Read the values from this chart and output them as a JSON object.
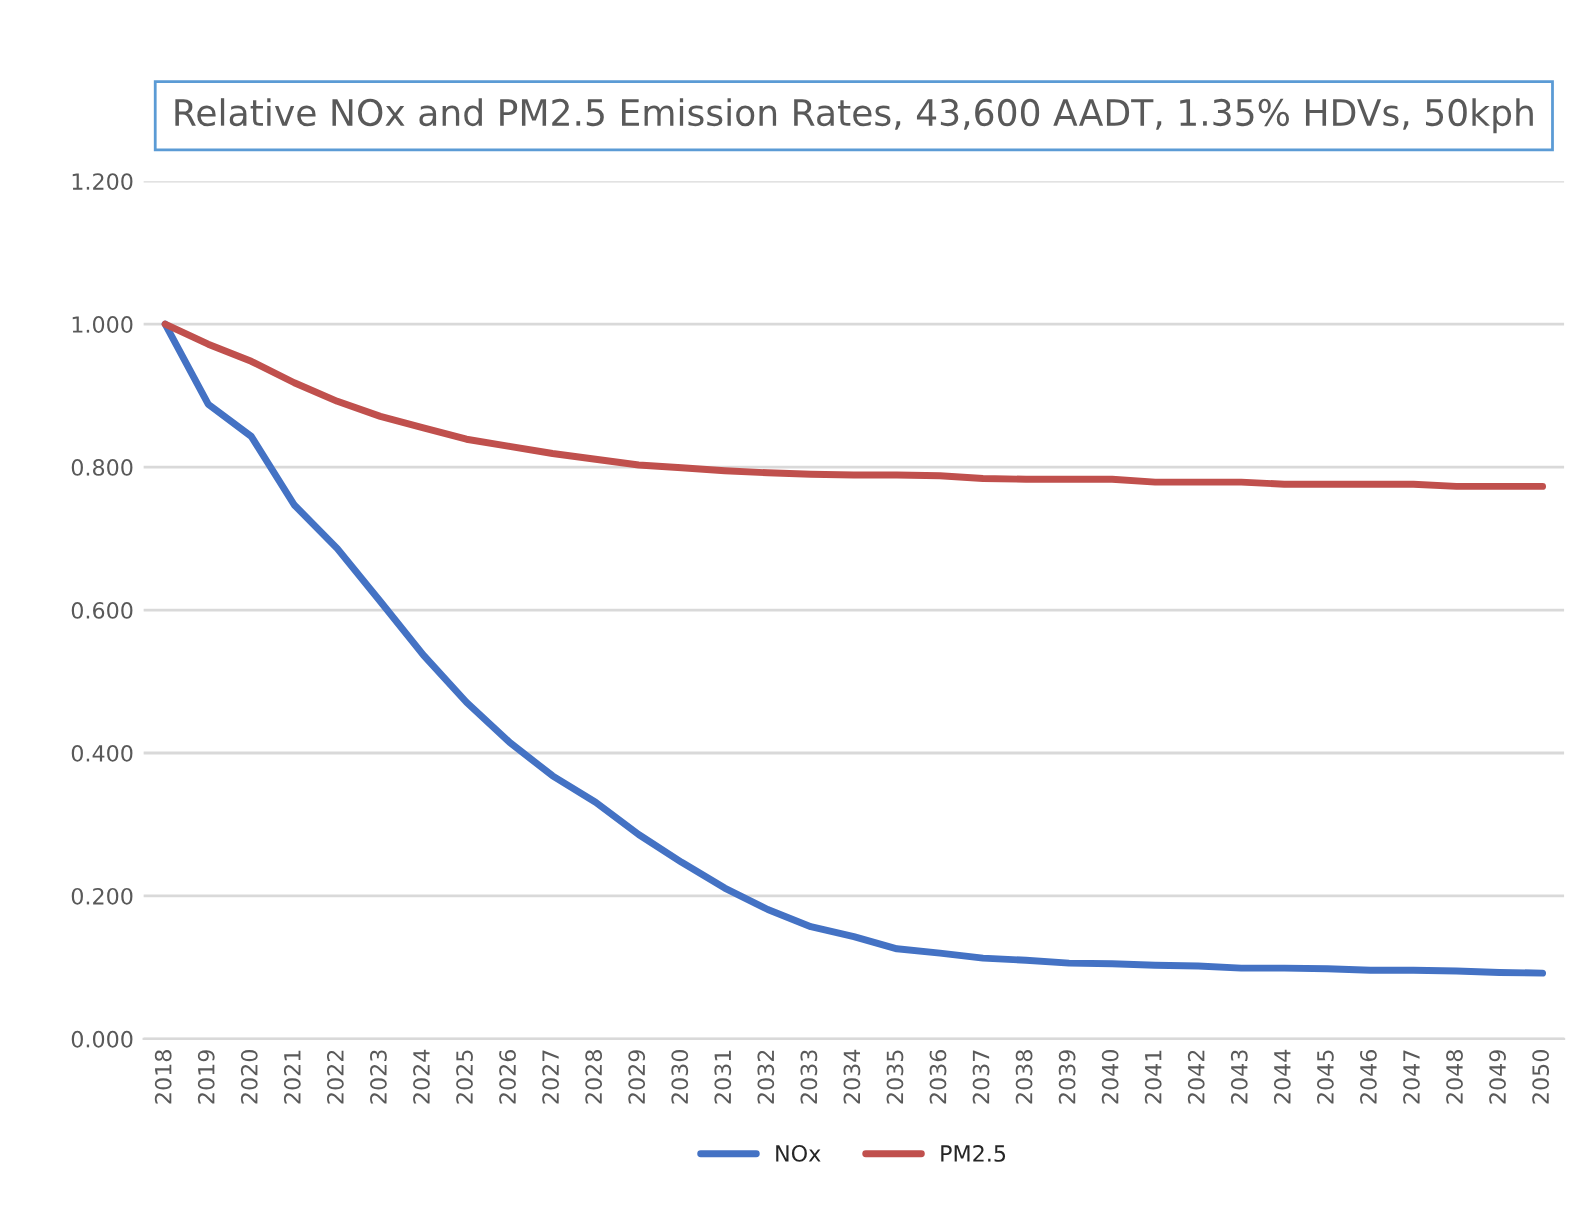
{
  "chart_data": {
    "type": "line",
    "title": "Relative NOx and PM2.5 Emission Rates, 43,600 AADT, 1.35% HDVs, 50kph",
    "categories": [
      "2018",
      "2019",
      "2020",
      "2021",
      "2022",
      "2023",
      "2024",
      "2025",
      "2026",
      "2027",
      "2028",
      "2029",
      "2030",
      "2031",
      "2032",
      "2033",
      "2034",
      "2035",
      "2036",
      "2037",
      "2038",
      "2039",
      "2040",
      "2041",
      "2042",
      "2043",
      "2044",
      "2045",
      "2046",
      "2047",
      "2048",
      "2049",
      "2050"
    ],
    "series": [
      {
        "name": "NOx",
        "color": "#4472c4",
        "values": [
          1.0,
          0.888,
          0.843,
          0.747,
          0.686,
          0.612,
          0.537,
          0.471,
          0.415,
          0.368,
          0.331,
          0.286,
          0.247,
          0.211,
          0.181,
          0.157,
          0.143,
          0.126,
          0.12,
          0.113,
          0.11,
          0.106,
          0.105,
          0.103,
          0.102,
          0.099,
          0.099,
          0.098,
          0.096,
          0.096,
          0.095,
          0.093,
          0.092
        ]
      },
      {
        "name": "PM2.5",
        "color": "#c0504d",
        "values": [
          1.0,
          0.972,
          0.948,
          0.918,
          0.892,
          0.871,
          0.855,
          0.839,
          0.829,
          0.819,
          0.811,
          0.803,
          0.799,
          0.795,
          0.792,
          0.79,
          0.789,
          0.789,
          0.788,
          0.784,
          0.783,
          0.783,
          0.783,
          0.779,
          0.779,
          0.779,
          0.776,
          0.776,
          0.776,
          0.776,
          0.773,
          0.773,
          0.773
        ]
      }
    ],
    "ylim": [
      0,
      1.2
    ],
    "yticks": [
      {
        "value": 0,
        "label": "0.000"
      },
      {
        "value": 0.2,
        "label": "0.200"
      },
      {
        "value": 0.4,
        "label": "0.400"
      },
      {
        "value": 0.6,
        "label": "0.600"
      },
      {
        "value": 0.8,
        "label": "0.800"
      },
      {
        "value": 1.0,
        "label": "1.000"
      },
      {
        "value": 1.2,
        "label": "1.200"
      }
    ],
    "grid": "y",
    "legend": "bottom",
    "marker": "none",
    "line_style": "solid"
  }
}
